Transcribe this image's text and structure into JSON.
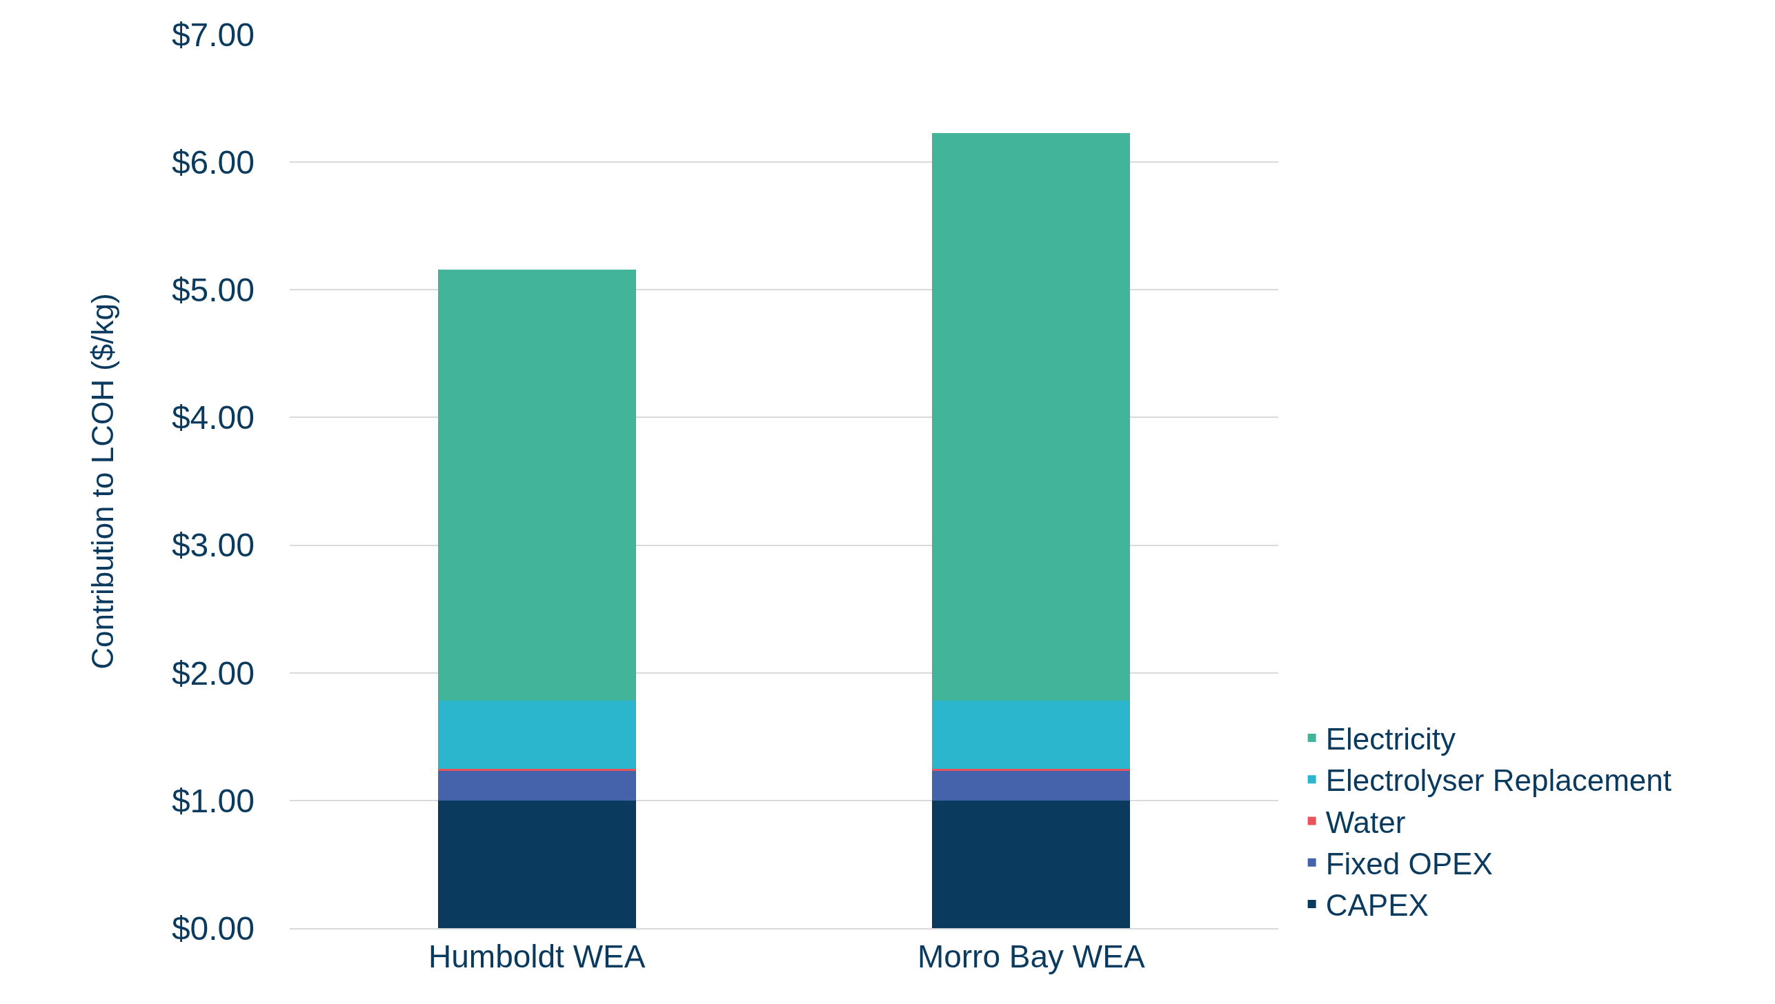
{
  "chart_data": {
    "type": "bar",
    "stacked": true,
    "ylabel": "Contribution to LCOH ($/kg)",
    "categories": [
      "Humboldt WEA",
      "Morro Bay WEA"
    ],
    "series": [
      {
        "name": "CAPEX",
        "color": "#0b3a5f",
        "values": [
          1.0,
          1.0
        ]
      },
      {
        "name": "Fixed OPEX",
        "color": "#4563aa",
        "values": [
          0.23,
          0.23
        ]
      },
      {
        "name": "Water",
        "color": "#e8525a",
        "values": [
          0.02,
          0.02
        ]
      },
      {
        "name": "Electrolyser Replacement",
        "color": "#2bb6ce",
        "values": [
          0.53,
          0.53
        ]
      },
      {
        "name": "Electricity",
        "color": "#41b499",
        "values": [
          3.38,
          4.45
        ]
      }
    ],
    "ylim": [
      0,
      7
    ],
    "yticks": [
      {
        "value": 0,
        "label": "$0.00"
      },
      {
        "value": 1,
        "label": "$1.00"
      },
      {
        "value": 2,
        "label": "$2.00"
      },
      {
        "value": 3,
        "label": "$3.00"
      },
      {
        "value": 4,
        "label": "$4.00"
      },
      {
        "value": 5,
        "label": "$5.00"
      },
      {
        "value": 6,
        "label": "$6.00"
      },
      {
        "value": 7,
        "label": "$7.00"
      }
    ],
    "grid": "y",
    "legend": "right"
  }
}
